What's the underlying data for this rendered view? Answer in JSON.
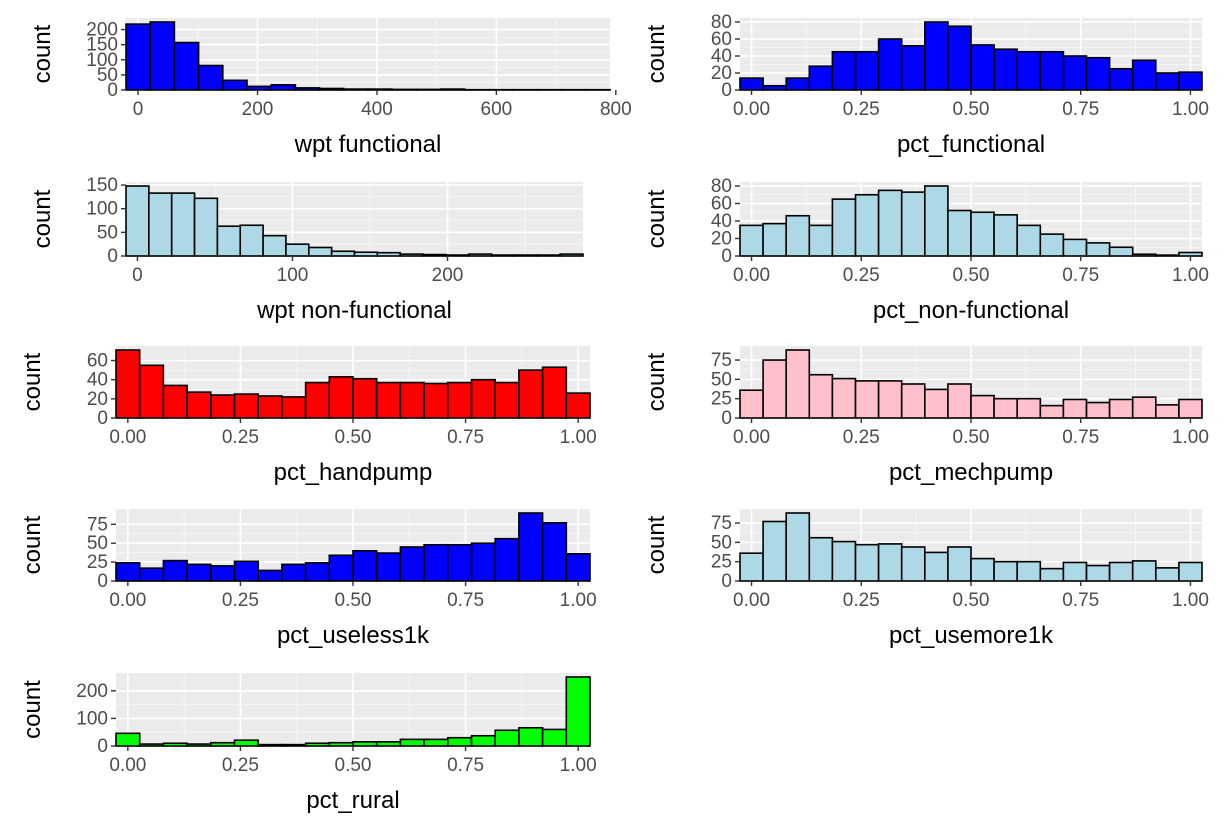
{
  "colors": {
    "panel_background": "#ebebeb",
    "grid_major": "#ffffff",
    "bar_outline": "#000000",
    "tick_text": "#4d4d4d"
  },
  "chart_data": [
    {
      "type": "bar",
      "xlabel": "wpt functional",
      "ylabel": "count",
      "fill": "#0000ff",
      "binwidth": 40.53,
      "bin_centers": [
        0,
        40.53,
        81.05,
        121.58,
        162.11,
        202.63,
        243.16,
        283.68,
        324.21,
        364.74,
        405.26,
        445.79,
        486.32,
        526.84,
        567.37,
        607.89,
        648.42,
        688.95,
        729.47,
        770
      ],
      "values": [
        218,
        225,
        157,
        81,
        32,
        12,
        17,
        7,
        5,
        3,
        3,
        2,
        2,
        3,
        1,
        1,
        1,
        1,
        1,
        1
      ],
      "xlim": [
        -20.26,
        790.26
      ],
      "ylim": [
        0,
        225
      ],
      "x_breaks": [
        0,
        200,
        400,
        600,
        800
      ],
      "x_minor_breaks": [
        100,
        300,
        500,
        700
      ],
      "x_tick_labels": [
        "0",
        "200",
        "400",
        "600",
        "800"
      ],
      "y_breaks": [
        0,
        50,
        100,
        150,
        200
      ],
      "y_tick_labels": [
        "0",
        "50",
        "100",
        "150",
        "200"
      ]
    },
    {
      "type": "bar",
      "xlabel": "pct_functional",
      "ylabel": "count",
      "fill": "#0000ff",
      "binwidth": 0.05263,
      "bin_centers": [
        0,
        0.0526,
        0.1053,
        0.1579,
        0.2105,
        0.2632,
        0.3158,
        0.3684,
        0.4211,
        0.4737,
        0.5263,
        0.5789,
        0.6316,
        0.6842,
        0.7368,
        0.7895,
        0.8421,
        0.8947,
        0.9474,
        1
      ],
      "values": [
        14,
        5,
        14,
        28,
        45,
        45,
        60,
        52,
        80,
        75,
        53,
        48,
        45,
        45,
        40,
        38,
        25,
        35,
        20,
        21
      ],
      "xlim": [
        -0.0263,
        1.0263
      ],
      "ylim": [
        0,
        80
      ],
      "x_breaks": [
        0,
        0.25,
        0.5,
        0.75,
        1
      ],
      "x_minor_breaks": [
        0.125,
        0.375,
        0.625,
        0.875
      ],
      "x_tick_labels": [
        "0.00",
        "0.25",
        "0.50",
        "0.75",
        "1.00"
      ],
      "y_breaks": [
        0,
        20,
        40,
        60,
        80
      ],
      "y_tick_labels": [
        "0",
        "20",
        "40",
        "60",
        "80"
      ]
    },
    {
      "type": "bar",
      "xlabel": "wpt non-functional",
      "ylabel": "count",
      "fill": "#add8e6",
      "binwidth": 14.74,
      "bin_centers": [
        0,
        14.74,
        29.47,
        44.21,
        58.95,
        73.68,
        88.42,
        103.16,
        117.89,
        132.63,
        147.37,
        162.11,
        176.84,
        191.58,
        206.32,
        221.05,
        235.79,
        250.53,
        265.26,
        280
      ],
      "values": [
        148,
        133,
        133,
        122,
        63,
        65,
        43,
        25,
        18,
        10,
        8,
        7,
        4,
        3,
        2,
        4,
        2,
        2,
        2,
        4
      ],
      "xlim": [
        -7.37,
        287.37
      ],
      "ylim": [
        0,
        148
      ],
      "x_breaks": [
        0,
        100,
        200
      ],
      "x_minor_breaks": [
        50,
        150,
        250
      ],
      "x_tick_labels": [
        "0",
        "100",
        "200"
      ],
      "y_breaks": [
        0,
        50,
        100,
        150
      ],
      "y_tick_labels": [
        "0",
        "50",
        "100",
        "150"
      ]
    },
    {
      "type": "bar",
      "xlabel": "pct_non-functional",
      "ylabel": "count",
      "fill": "#add8e6",
      "binwidth": 0.05263,
      "bin_centers": [
        0,
        0.0526,
        0.1053,
        0.1579,
        0.2105,
        0.2632,
        0.3158,
        0.3684,
        0.4211,
        0.4737,
        0.5263,
        0.5789,
        0.6316,
        0.6842,
        0.7368,
        0.7895,
        0.8421,
        0.8947,
        0.9474,
        1
      ],
      "values": [
        35,
        37,
        46,
        35,
        65,
        70,
        75,
        73,
        80,
        52,
        50,
        47,
        35,
        25,
        19,
        15,
        10,
        2,
        1,
        4
      ],
      "xlim": [
        -0.0263,
        1.0263
      ],
      "ylim": [
        0,
        80
      ],
      "x_breaks": [
        0,
        0.25,
        0.5,
        0.75,
        1
      ],
      "x_minor_breaks": [
        0.125,
        0.375,
        0.625,
        0.875
      ],
      "x_tick_labels": [
        "0.00",
        "0.25",
        "0.50",
        "0.75",
        "1.00"
      ],
      "y_breaks": [
        0,
        20,
        40,
        60,
        80
      ],
      "y_tick_labels": [
        "0",
        "20",
        "40",
        "60",
        "80"
      ]
    },
    {
      "type": "bar",
      "xlabel": "pct_handpump",
      "ylabel": "count",
      "fill": "#ff0000",
      "binwidth": 0.05263,
      "bin_centers": [
        0,
        0.0526,
        0.1053,
        0.1579,
        0.2105,
        0.2632,
        0.3158,
        0.3684,
        0.4211,
        0.4737,
        0.5263,
        0.5789,
        0.6316,
        0.6842,
        0.7368,
        0.7895,
        0.8421,
        0.8947,
        0.9474,
        1
      ],
      "values": [
        71,
        55,
        34,
        27,
        24,
        25,
        23,
        22,
        37,
        43,
        41,
        37,
        37,
        36,
        37,
        40,
        37,
        50,
        53,
        26
      ],
      "xlim": [
        -0.0263,
        1.0263
      ],
      "ylim": [
        0,
        71
      ],
      "x_breaks": [
        0,
        0.25,
        0.5,
        0.75,
        1
      ],
      "x_minor_breaks": [
        0.125,
        0.375,
        0.625,
        0.875
      ],
      "x_tick_labels": [
        "0.00",
        "0.25",
        "0.50",
        "0.75",
        "1.00"
      ],
      "y_breaks": [
        0,
        20,
        40,
        60
      ],
      "y_tick_labels": [
        "0",
        "20",
        "40",
        "60"
      ]
    },
    {
      "type": "bar",
      "xlabel": "pct_mechpump",
      "ylabel": "count",
      "fill": "#ffc0cb",
      "binwidth": 0.05263,
      "bin_centers": [
        0,
        0.0526,
        0.1053,
        0.1579,
        0.2105,
        0.2632,
        0.3158,
        0.3684,
        0.4211,
        0.4737,
        0.5263,
        0.5789,
        0.6316,
        0.6842,
        0.7368,
        0.7895,
        0.8421,
        0.8947,
        0.9474,
        1
      ],
      "values": [
        36,
        75,
        88,
        56,
        51,
        48,
        48,
        44,
        37,
        44,
        29,
        25,
        25,
        16,
        24,
        20,
        24,
        27,
        17,
        24
      ],
      "xlim": [
        -0.0263,
        1.0263
      ],
      "ylim": [
        0,
        88
      ],
      "x_breaks": [
        0,
        0.25,
        0.5,
        0.75,
        1
      ],
      "x_minor_breaks": [
        0.125,
        0.375,
        0.625,
        0.875
      ],
      "x_tick_labels": [
        "0.00",
        "0.25",
        "0.50",
        "0.75",
        "1.00"
      ],
      "y_breaks": [
        0,
        25,
        50,
        75
      ],
      "y_tick_labels": [
        "0",
        "25",
        "50",
        "75"
      ]
    },
    {
      "type": "bar",
      "xlabel": "pct_useless1k",
      "ylabel": "count",
      "fill": "#0000ff",
      "binwidth": 0.05263,
      "bin_centers": [
        0,
        0.0526,
        0.1053,
        0.1579,
        0.2105,
        0.2632,
        0.3158,
        0.3684,
        0.4211,
        0.4737,
        0.5263,
        0.5789,
        0.6316,
        0.6842,
        0.7368,
        0.7895,
        0.8421,
        0.8947,
        0.9474,
        1
      ],
      "values": [
        24,
        17,
        27,
        22,
        20,
        26,
        14,
        22,
        24,
        34,
        40,
        37,
        45,
        48,
        48,
        50,
        56,
        90,
        77,
        36
      ],
      "xlim": [
        -0.0263,
        1.0263
      ],
      "ylim": [
        0,
        90
      ],
      "x_breaks": [
        0,
        0.25,
        0.5,
        0.75,
        1
      ],
      "x_minor_breaks": [
        0.125,
        0.375,
        0.625,
        0.875
      ],
      "x_tick_labels": [
        "0.00",
        "0.25",
        "0.50",
        "0.75",
        "1.00"
      ],
      "y_breaks": [
        0,
        25,
        50,
        75
      ],
      "y_tick_labels": [
        "0",
        "25",
        "50",
        "75"
      ]
    },
    {
      "type": "bar",
      "xlabel": "pct_usemore1k",
      "ylabel": "count",
      "fill": "#add8e6",
      "binwidth": 0.05263,
      "bin_centers": [
        0,
        0.0526,
        0.1053,
        0.1579,
        0.2105,
        0.2632,
        0.3158,
        0.3684,
        0.4211,
        0.4737,
        0.5263,
        0.5789,
        0.6316,
        0.6842,
        0.7368,
        0.7895,
        0.8421,
        0.8947,
        0.9474,
        1
      ],
      "values": [
        36,
        77,
        88,
        56,
        51,
        47,
        48,
        44,
        37,
        44,
        29,
        25,
        25,
        16,
        24,
        20,
        24,
        26,
        17,
        24
      ],
      "xlim": [
        -0.0263,
        1.0263
      ],
      "ylim": [
        0,
        88
      ],
      "x_breaks": [
        0,
        0.25,
        0.5,
        0.75,
        1
      ],
      "x_minor_breaks": [
        0.125,
        0.375,
        0.625,
        0.875
      ],
      "x_tick_labels": [
        "0.00",
        "0.25",
        "0.50",
        "0.75",
        "1.00"
      ],
      "y_breaks": [
        0,
        25,
        50,
        75
      ],
      "y_tick_labels": [
        "0",
        "25",
        "50",
        "75"
      ]
    },
    {
      "type": "bar",
      "xlabel": "pct_rural",
      "ylabel": "count",
      "fill": "#00ff00",
      "binwidth": 0.05263,
      "bin_centers": [
        0,
        0.0526,
        0.1053,
        0.1579,
        0.2105,
        0.2632,
        0.3158,
        0.3684,
        0.4211,
        0.4737,
        0.5263,
        0.5789,
        0.6316,
        0.6842,
        0.7368,
        0.7895,
        0.8421,
        0.8947,
        0.9474,
        1
      ],
      "values": [
        46,
        7,
        10,
        7,
        12,
        21,
        5,
        5,
        10,
        12,
        15,
        15,
        24,
        24,
        30,
        37,
        57,
        66,
        60,
        250
      ],
      "xlim": [
        -0.0263,
        1.0263
      ],
      "ylim": [
        0,
        250
      ],
      "x_breaks": [
        0,
        0.25,
        0.5,
        0.75,
        1
      ],
      "x_minor_breaks": [
        0.125,
        0.375,
        0.625,
        0.875
      ],
      "x_tick_labels": [
        "0.00",
        "0.25",
        "0.50",
        "0.75",
        "1.00"
      ],
      "y_breaks": [
        0,
        100,
        200
      ],
      "y_tick_labels": [
        "0",
        "100",
        "200"
      ]
    }
  ]
}
